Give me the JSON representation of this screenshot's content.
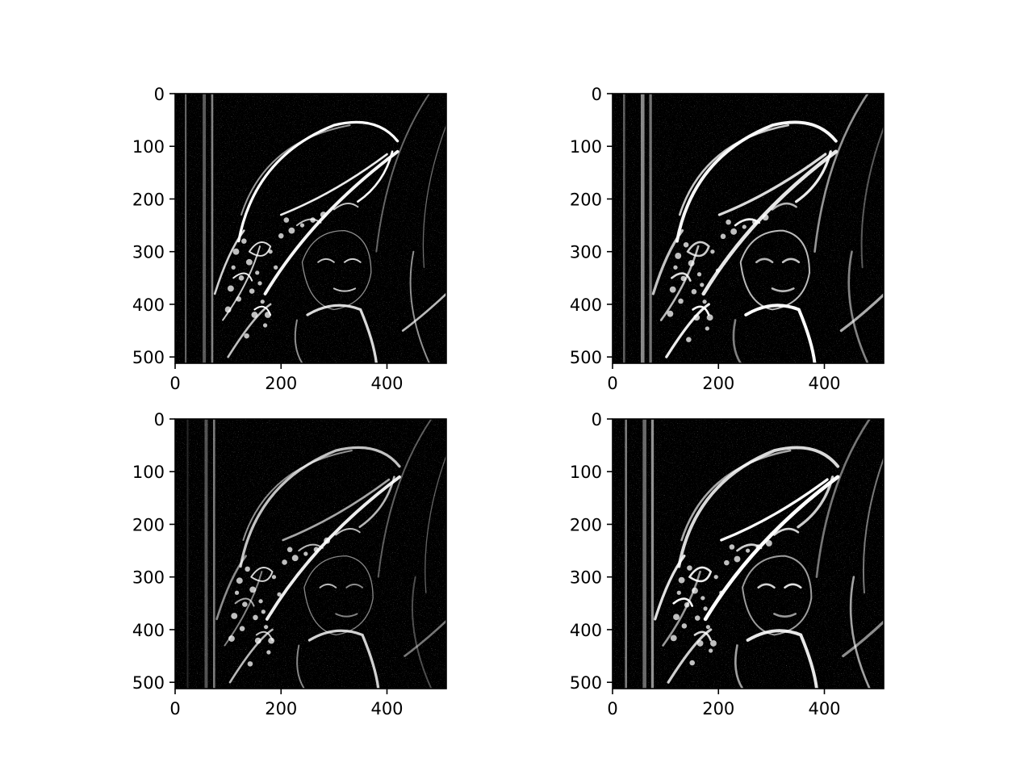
{
  "figure": {
    "background": "#ffffff"
  },
  "chart_data": [
    {
      "type": "heatmap",
      "panel": "top-left",
      "description": "grayscale edge-magnitude image, 512x512 pixels",
      "colormap": "gray",
      "xlim": [
        0,
        512
      ],
      "ylim": [
        512,
        0
      ],
      "xticks": [
        0,
        200,
        400
      ],
      "yticks": [
        0,
        100,
        200,
        300,
        400,
        500
      ],
      "title": "",
      "xlabel": "",
      "ylabel": ""
    },
    {
      "type": "heatmap",
      "panel": "top-right",
      "description": "grayscale edge-magnitude image, 512x512 pixels",
      "colormap": "gray",
      "xlim": [
        0,
        512
      ],
      "ylim": [
        512,
        0
      ],
      "xticks": [
        0,
        200,
        400
      ],
      "yticks": [
        0,
        100,
        200,
        300,
        400,
        500
      ],
      "title": "",
      "xlabel": "",
      "ylabel": ""
    },
    {
      "type": "heatmap",
      "panel": "bottom-left",
      "description": "grayscale edge-magnitude image, 512x512 pixels",
      "colormap": "gray",
      "xlim": [
        0,
        512
      ],
      "ylim": [
        512,
        0
      ],
      "xticks": [
        0,
        200,
        400
      ],
      "yticks": [
        0,
        100,
        200,
        300,
        400,
        500
      ],
      "title": "",
      "xlabel": "",
      "ylabel": ""
    },
    {
      "type": "heatmap",
      "panel": "bottom-right",
      "description": "grayscale edge-magnitude image, 512x512 pixels",
      "colormap": "gray",
      "xlim": [
        0,
        512
      ],
      "ylim": [
        512,
        0
      ],
      "xticks": [
        0,
        200,
        400
      ],
      "yticks": [
        0,
        100,
        200,
        300,
        400,
        500
      ],
      "title": "",
      "xlabel": "",
      "ylabel": ""
    }
  ]
}
